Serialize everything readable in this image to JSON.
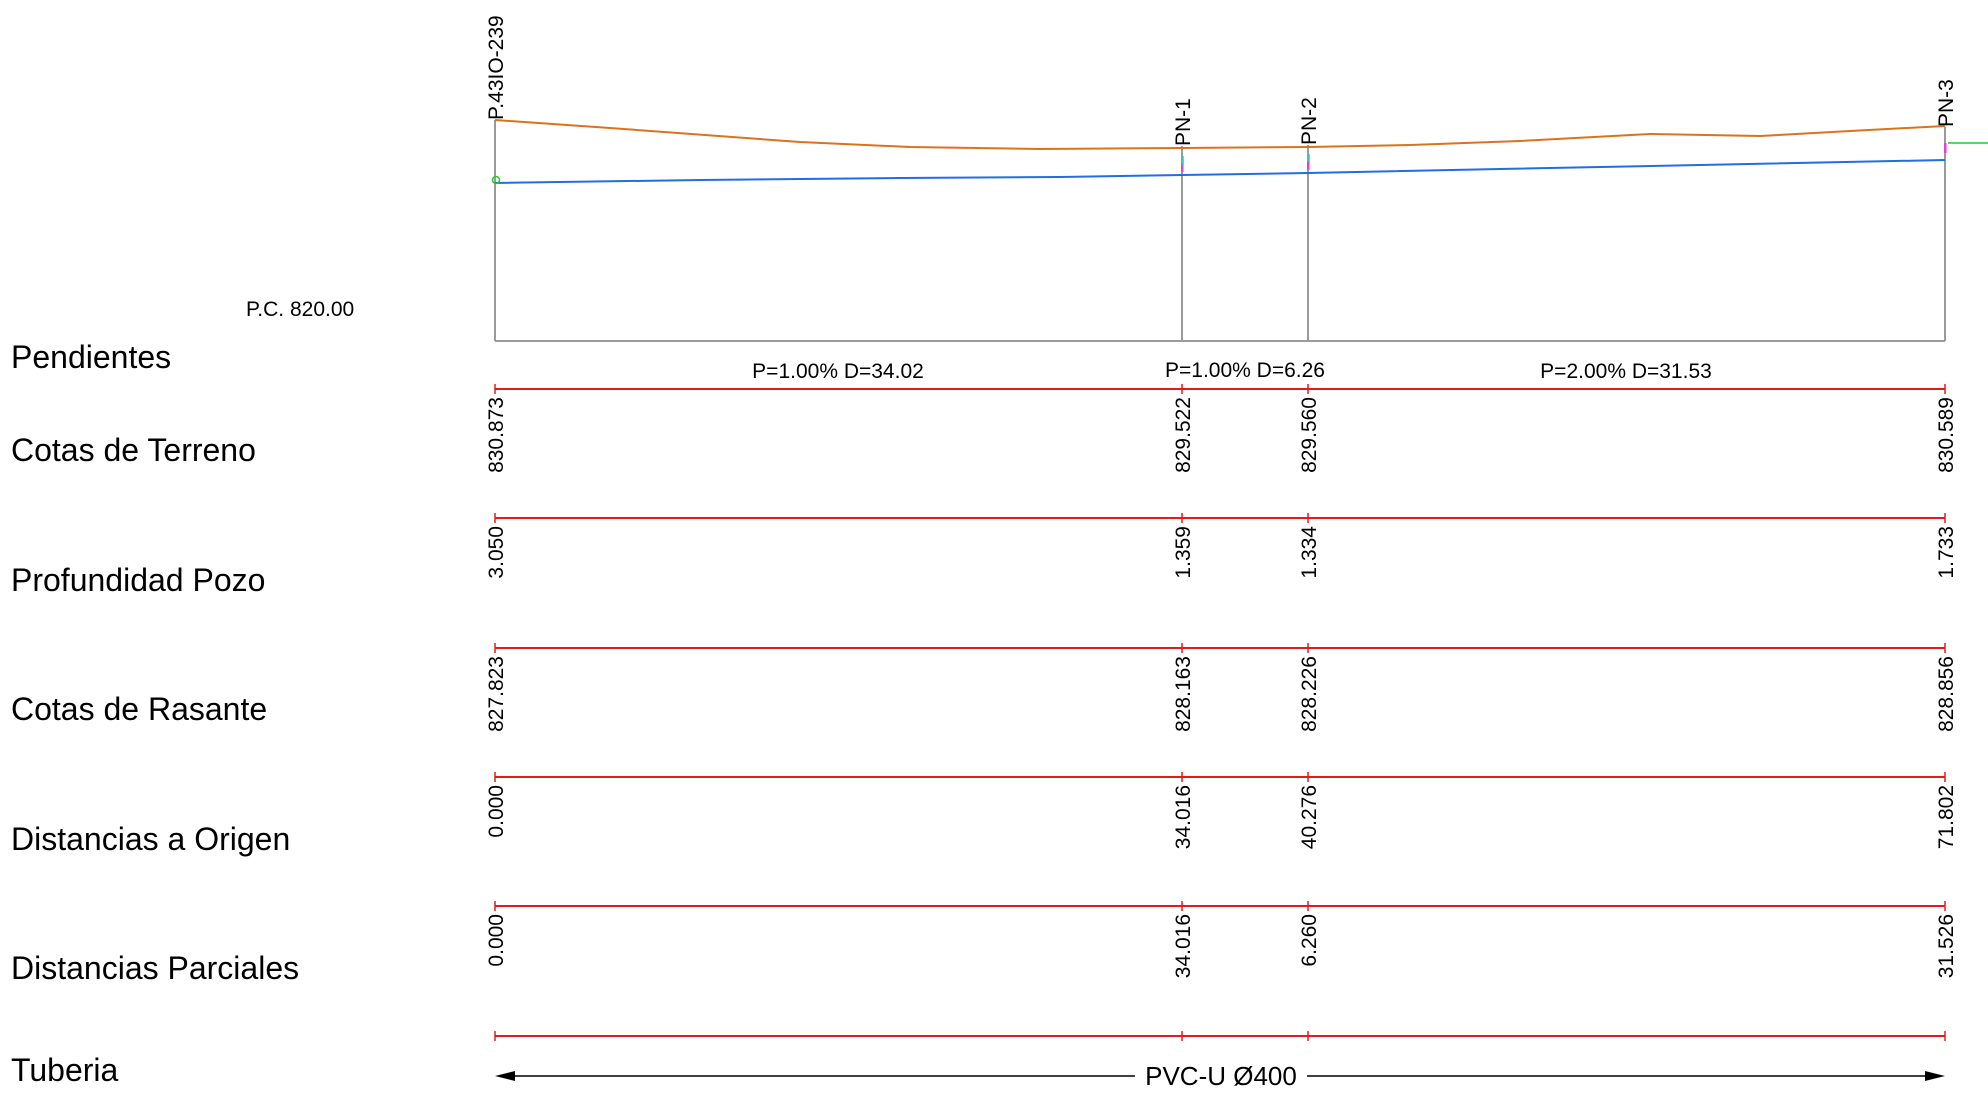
{
  "reference_level": "P.C. 820.00",
  "row_labels": {
    "pendientes": "Pendientes",
    "cotas_terreno": "Cotas de Terreno",
    "profundidad_pozo": "Profundidad Pozo",
    "cotas_rasante": "Cotas de Rasante",
    "distancias_origen": "Distancias a Origen",
    "distancias_parciales": "Distancias Parciales",
    "tuberia": "Tuberia"
  },
  "stations": [
    {
      "name": "P.43IO-239",
      "terreno": "830.873",
      "profundidad": "3.050",
      "rasante": "827.823",
      "dist_origen": "0.000",
      "dist_parcial": "0.000"
    },
    {
      "name": "PN-1",
      "terreno": "829.522",
      "profundidad": "1.359",
      "rasante": "828.163",
      "dist_origen": "34.016",
      "dist_parcial": "34.016"
    },
    {
      "name": "PN-2",
      "terreno": "829.560",
      "profundidad": "1.334",
      "rasante": "828.226",
      "dist_origen": "40.276",
      "dist_parcial": "6.260"
    },
    {
      "name": "PN-3",
      "terreno": "830.589",
      "profundidad": "1.733",
      "rasante": "828.856",
      "dist_origen": "71.802",
      "dist_parcial": "31.526"
    }
  ],
  "segments": [
    {
      "label": "P=1.00% D=34.02"
    },
    {
      "label": "P=1.00% D=6.26"
    },
    {
      "label": "P=2.00% D=31.53"
    }
  ],
  "pipe_label": "PVC-U Ø400",
  "colors": {
    "terrain": "#d9731f",
    "invert": "#1f6fe0",
    "band_lines": "#e31b1b",
    "station_lines": "#9a9a9a",
    "marker_green": "#22cc22",
    "marker_magenta": "#e040e0"
  }
}
